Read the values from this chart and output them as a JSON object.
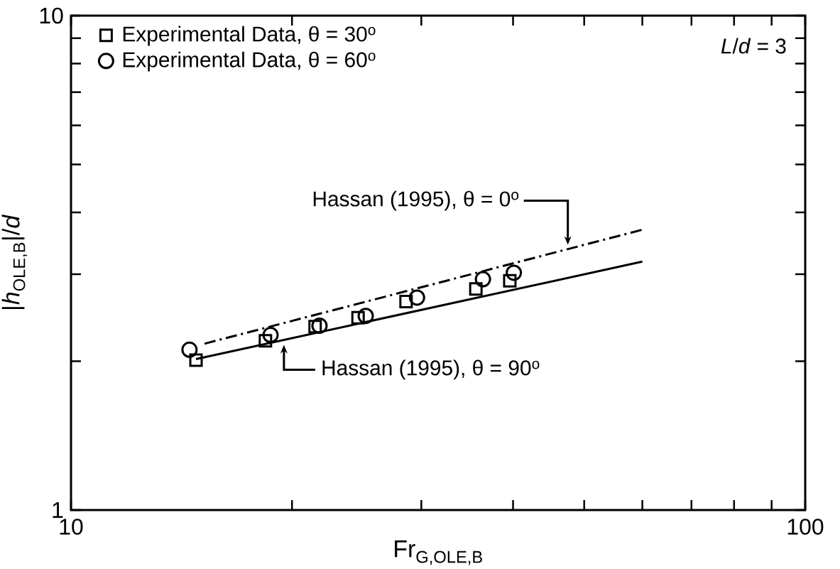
{
  "chart_data": {
    "type": "scatter",
    "xlabel": "Fr$_{G,OLE,B}$",
    "ylabel": "|*h*$_{OLE,B}$|/*d*",
    "log": "xy",
    "xlim": [
      10,
      100
    ],
    "ylim": [
      1,
      10
    ],
    "xticks": [
      10,
      {
        "value": 20,
        "label": null
      },
      {
        "value": 30,
        "label": null
      },
      {
        "value": 40,
        "label": null
      },
      {
        "value": 50,
        "label": null
      },
      {
        "value": 60,
        "label": null
      },
      {
        "value": 70,
        "label": null
      },
      {
        "value": 80,
        "label": null
      },
      {
        "value": 90,
        "label": null
      },
      100
    ],
    "yticks": [
      1,
      {
        "value": 2,
        "label": null
      },
      {
        "value": 3,
        "label": null
      },
      {
        "value": 4,
        "label": null
      },
      {
        "value": 5,
        "label": null
      },
      {
        "value": 6,
        "label": null
      },
      {
        "value": 7,
        "label": null
      },
      {
        "value": 8,
        "label": null
      },
      {
        "value": 9,
        "label": null
      },
      10
    ],
    "legend": "top left",
    "grid": false,
    "series": [
      {
        "name": "Experimental Data, θ = 30$^{o}$",
        "type": "scatter",
        "marker": "square",
        "color": "#000000",
        "x": [
          14.8,
          18.4,
          21.5,
          24.6,
          28.6,
          35.6,
          39.6
        ],
        "values": [
          2.01,
          2.2,
          2.35,
          2.45,
          2.64,
          2.8,
          2.91
        ]
      },
      {
        "name": "Experimental Data, θ = 60$^{o}$",
        "type": "scatter",
        "marker": "circle",
        "color": "#000000",
        "x": [
          14.5,
          18.7,
          21.8,
          25.2,
          29.6,
          36.4,
          40.1
        ],
        "values": [
          2.11,
          2.26,
          2.36,
          2.47,
          2.69,
          2.93,
          3.02
        ]
      },
      {
        "type": "line",
        "marker": "none",
        "line_style": "dashdot",
        "color": "#000000",
        "x": [
          15.2,
          60
        ],
        "values": [
          2.17,
          3.69
        ]
      },
      {
        "type": "line",
        "marker": "none",
        "line_style": "solid",
        "color": "#000000",
        "x": [
          14.8,
          60
        ],
        "values": [
          2.02,
          3.18
        ]
      }
    ],
    "annotations": [
      "*L*/*d* = 3",
      {
        "text": "Hassan (1995), θ = 0$^{o}$",
        "x": 47.5,
        "y": 3.44
      },
      {
        "text": "Hassan (1995), θ = 90$^{o}$",
        "x": 19.5,
        "y": 2.18
      }
    ]
  }
}
